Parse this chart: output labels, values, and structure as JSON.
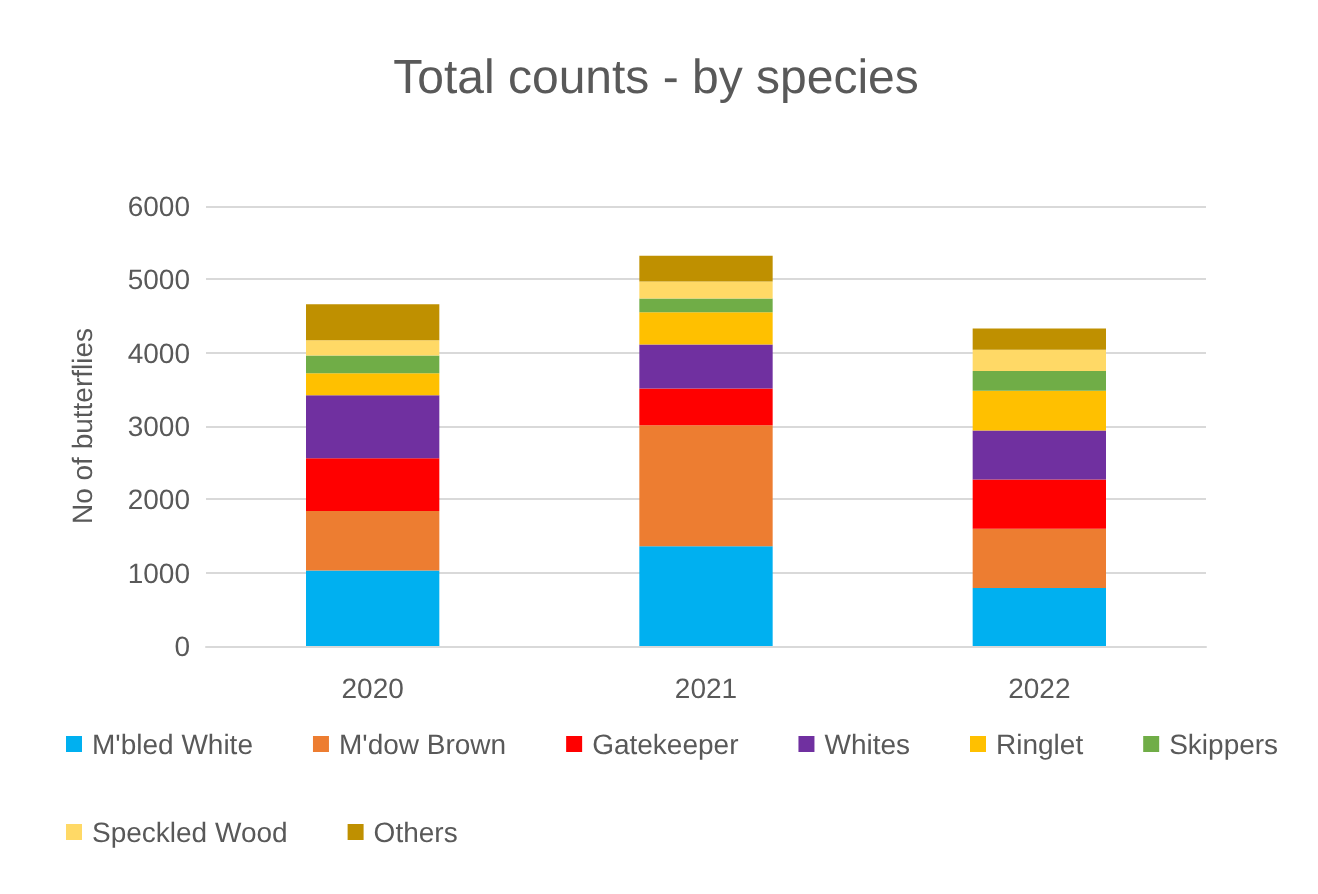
{
  "chart_data": {
    "type": "bar",
    "title": "Total counts - by species",
    "ylabel": "No of butterflies",
    "categories": [
      "2020",
      "2021",
      "2022"
    ],
    "stacked": true,
    "ylim": [
      0,
      6000
    ],
    "yticks": [
      0,
      1000,
      2000,
      3000,
      4000,
      5000,
      6000
    ],
    "grid": "y",
    "legend": "bottom",
    "series": [
      {
        "name": "M'bled White",
        "color": "#00b0f0",
        "values": [
          1030,
          1360,
          790
        ]
      },
      {
        "name": "M'dow Brown",
        "color": "#ed7d31",
        "values": [
          810,
          1650,
          810
        ]
      },
      {
        "name": "Gatekeeper",
        "color": "#ff0000",
        "values": [
          720,
          500,
          670
        ]
      },
      {
        "name": "Whites",
        "color": "#7030a0",
        "values": [
          860,
          600,
          670
        ]
      },
      {
        "name": "Ringlet",
        "color": "#ffc000",
        "values": [
          300,
          440,
          540
        ]
      },
      {
        "name": "Skippers",
        "color": "#70ad47",
        "values": [
          240,
          190,
          270
        ]
      },
      {
        "name": "Speckled Wood",
        "color": "#ffd966",
        "values": [
          210,
          230,
          290
        ]
      },
      {
        "name": "Others",
        "color": "#bf9000",
        "values": [
          490,
          350,
          290
        ]
      }
    ]
  }
}
